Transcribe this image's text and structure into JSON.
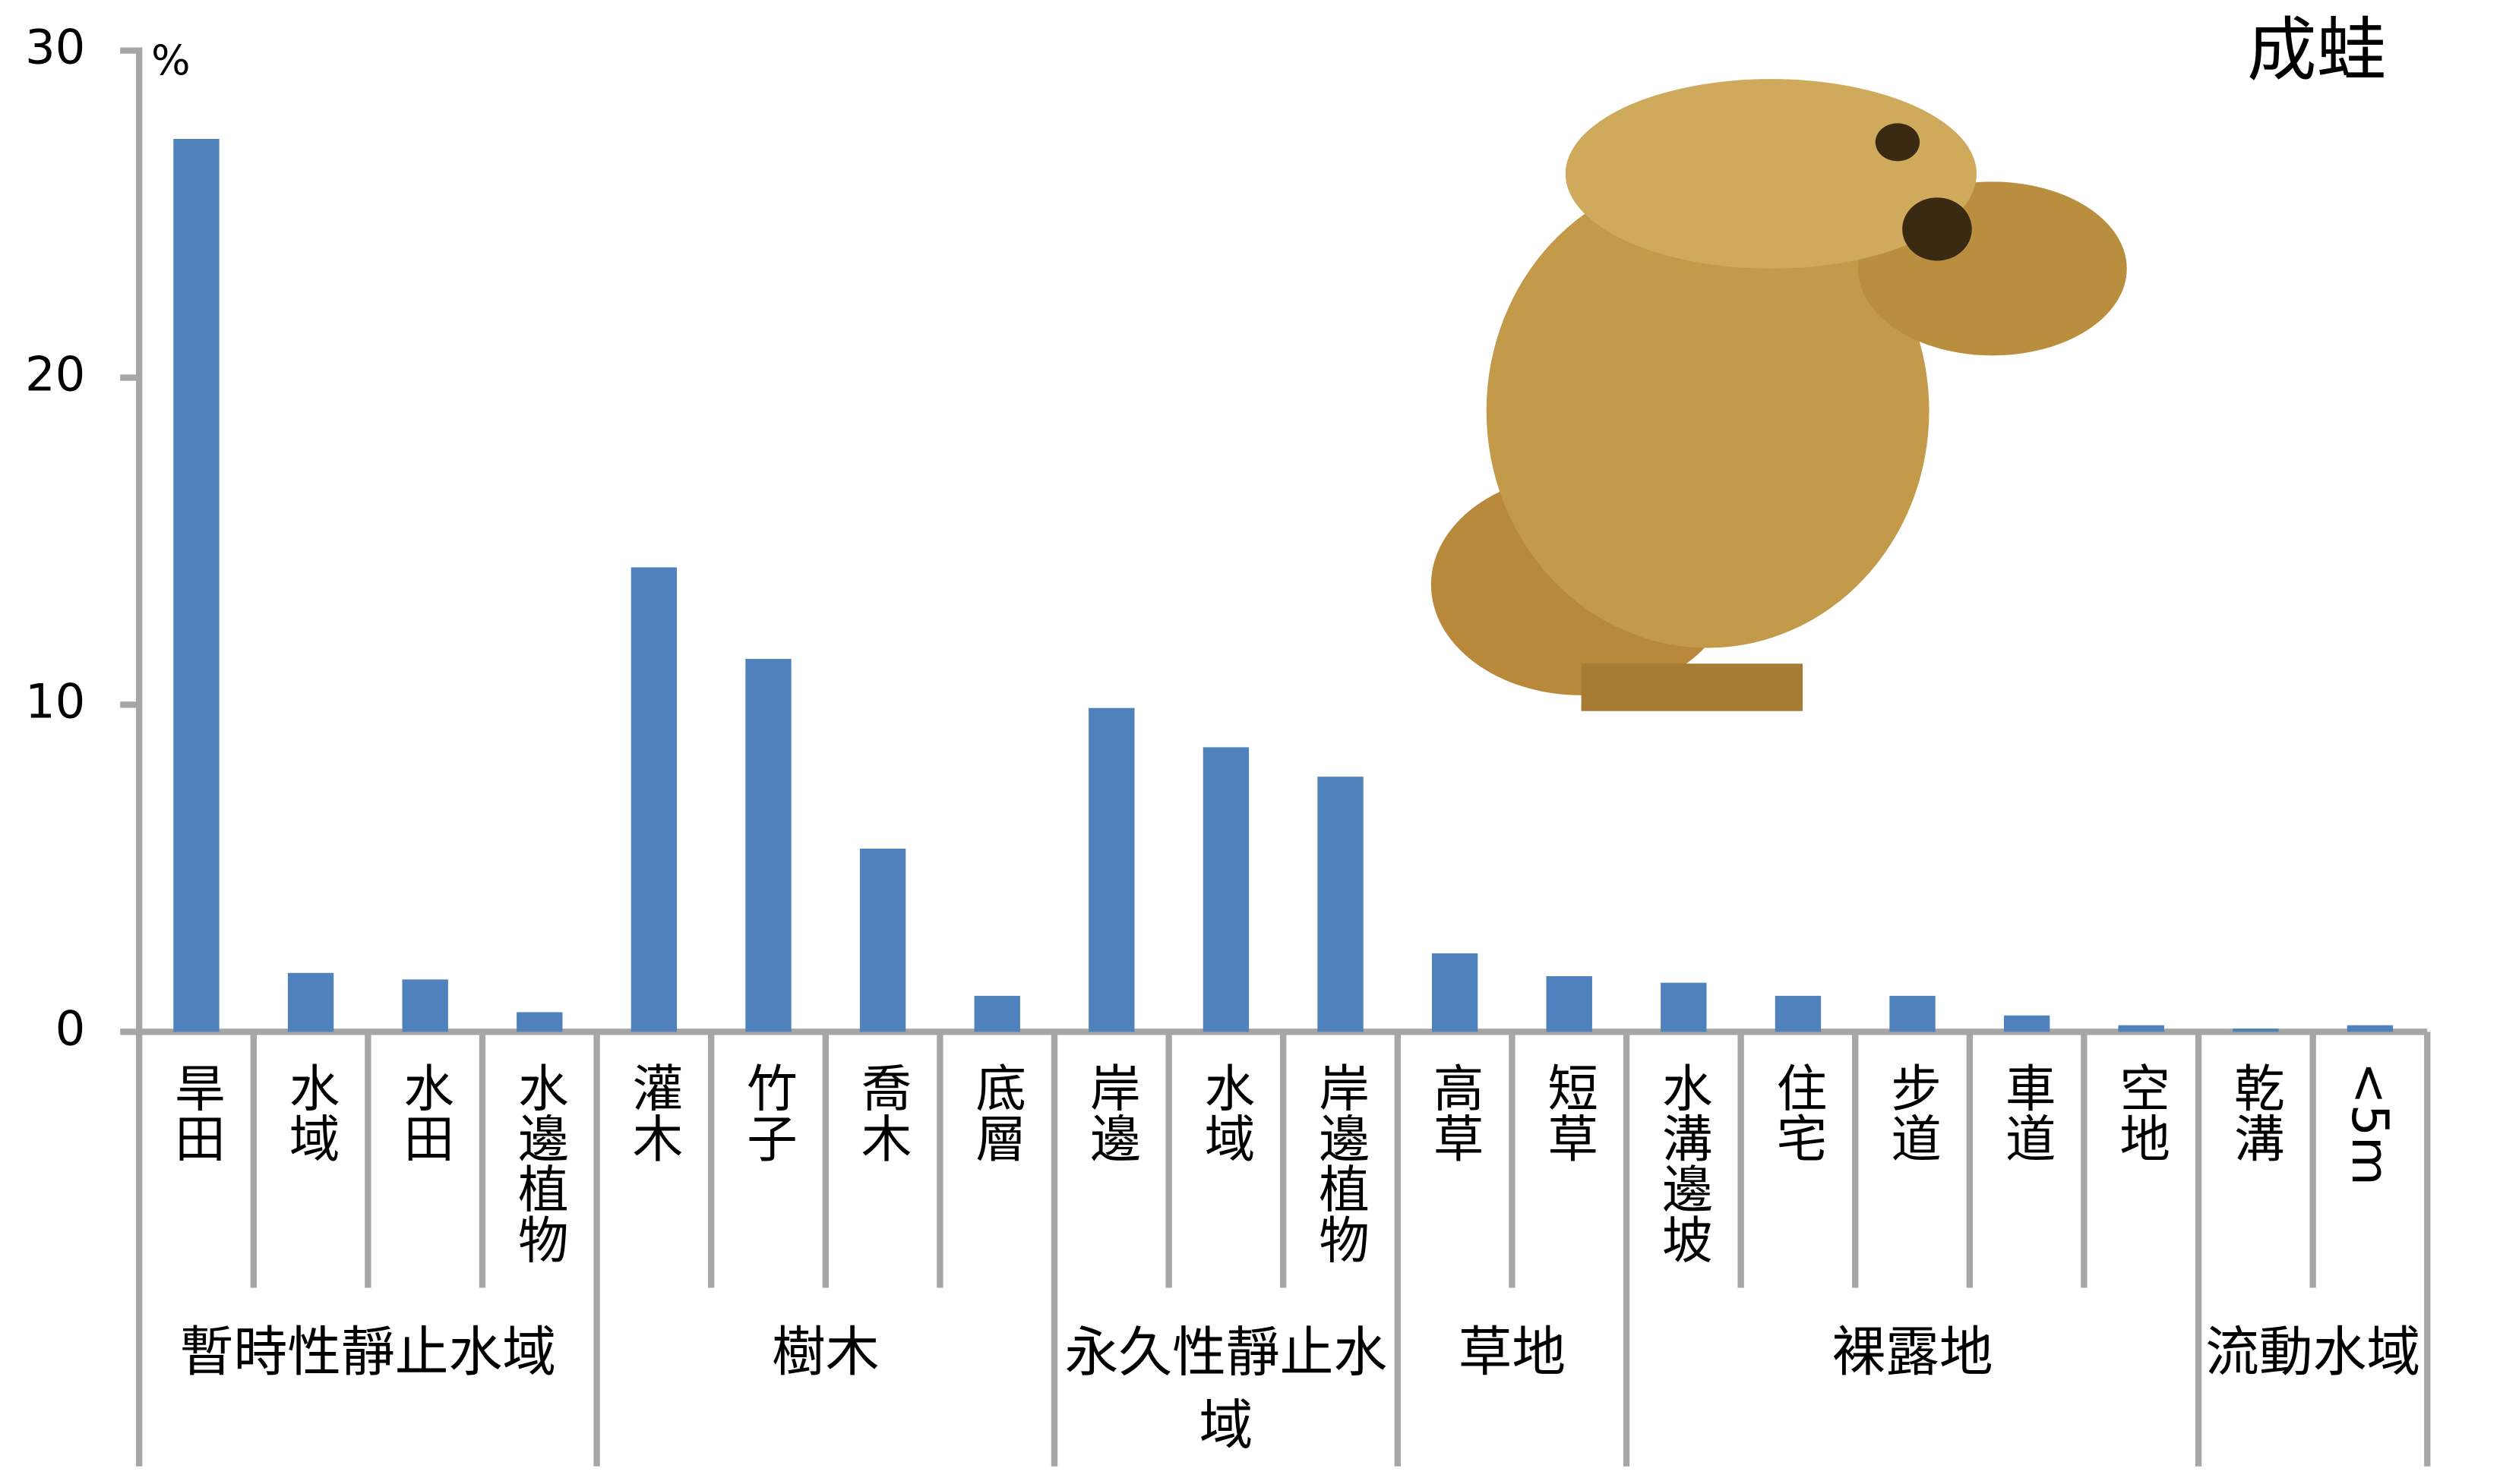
{
  "chart_data": {
    "type": "bar",
    "title": "成蛙",
    "y_unit": "%",
    "color": "#4f81bd",
    "ylim": [
      0,
      30
    ],
    "yticks": [
      0,
      10,
      20,
      30
    ],
    "groups": [
      {
        "name": "暫時性靜止水域",
        "categories": [
          "旱田",
          "水域",
          "水田",
          "水邊植物"
        ]
      },
      {
        "name": "樹木",
        "categories": [
          "灌木",
          "竹子",
          "喬木",
          "底層"
        ]
      },
      {
        "name": "永久性靜止水域",
        "categories": [
          "岸邊",
          "水域",
          "岸邊植物"
        ]
      },
      {
        "name": "草地",
        "categories": [
          "高草",
          "短草"
        ]
      },
      {
        "name": "裸露地",
        "categories": [
          "水溝邊坡",
          "住宅",
          "步道",
          "車道",
          "空地"
        ]
      },
      {
        "name": "流動水域",
        "categories": [
          "乾溝",
          "<5m"
        ]
      }
    ],
    "values": [
      27.3,
      1.8,
      1.6,
      0.6,
      14.2,
      11.4,
      5.6,
      1.1,
      9.9,
      8.7,
      7.8,
      2.4,
      1.7,
      1.5,
      1.1,
      1.1,
      0.5,
      0.2,
      0.1,
      0.2
    ]
  }
}
